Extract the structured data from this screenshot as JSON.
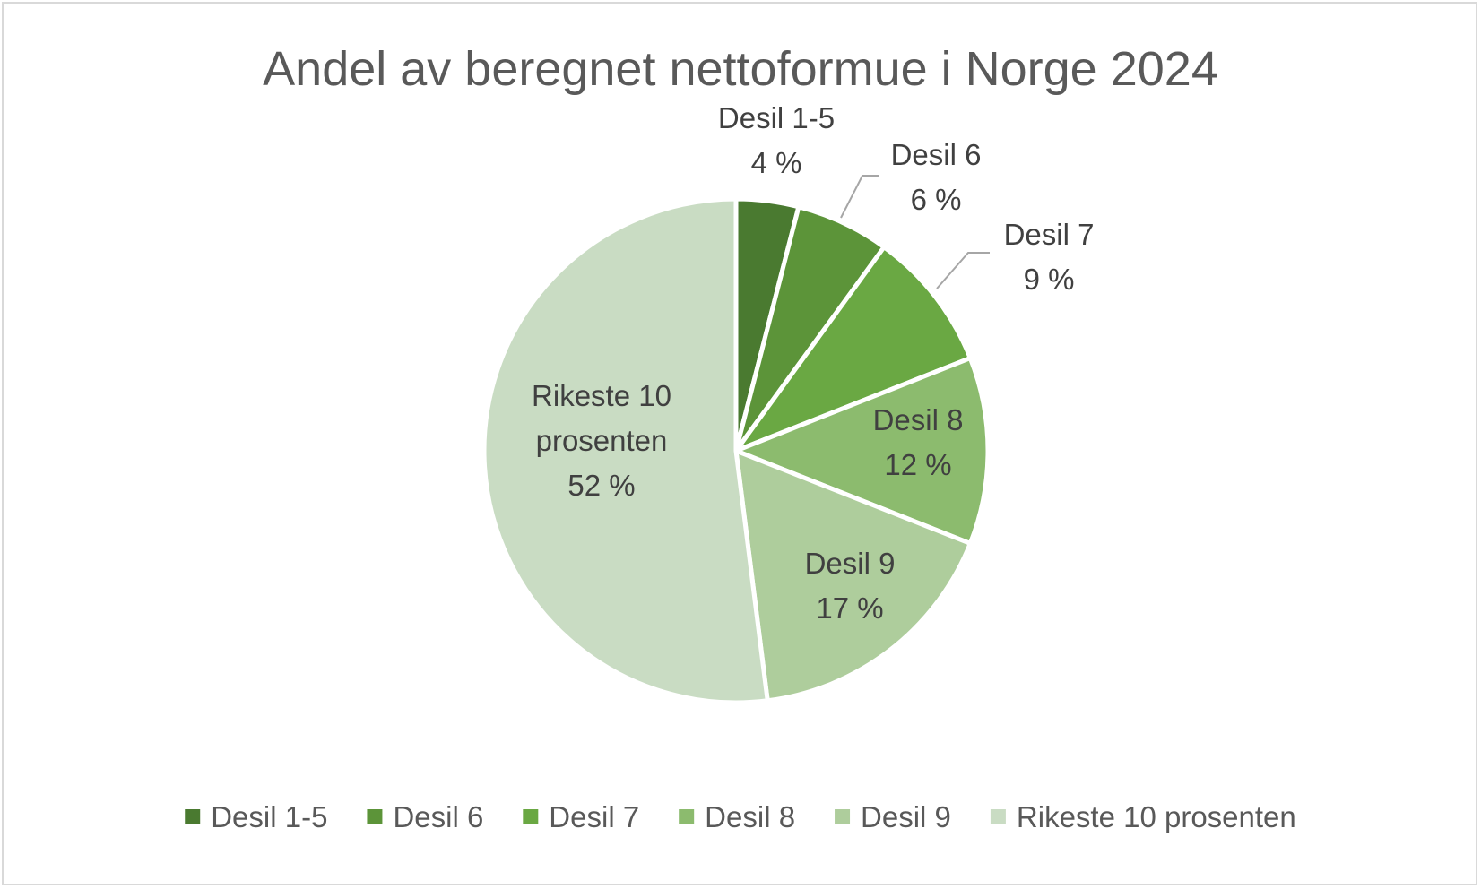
{
  "chart_data": {
    "type": "pie",
    "title": "Andel av beregnet nettoformue i Norge 2024",
    "slices": [
      {
        "label": "Desil 1-5",
        "value": 4,
        "display": "4 %",
        "color": "#4a7a30"
      },
      {
        "label": "Desil 6",
        "value": 6,
        "display": "6 %",
        "color": "#5c9439"
      },
      {
        "label": "Desil 7",
        "value": 9,
        "display": "9 %",
        "color": "#6aa843"
      },
      {
        "label": "Desil 8",
        "value": 12,
        "display": "12 %",
        "color": "#8cbb6e"
      },
      {
        "label": "Desil 9",
        "value": 17,
        "display": "17 %",
        "color": "#aecd9c"
      },
      {
        "label": "Rikeste 10 prosenten",
        "value": 52,
        "display": "52 %",
        "color": "#c9dcc3"
      }
    ],
    "data_labels": [
      {
        "lines": [
          "Desil 1-5",
          "4 %"
        ]
      },
      {
        "lines": [
          "Desil 6",
          "6 %"
        ]
      },
      {
        "lines": [
          "Desil 7",
          "9 %"
        ]
      },
      {
        "lines": [
          "Desil 8",
          "12 %"
        ]
      },
      {
        "lines": [
          "Desil 9",
          "17 %"
        ]
      },
      {
        "lines": [
          "Rikeste 10",
          "prosenten",
          "52 %"
        ]
      }
    ],
    "legend_position": "bottom"
  }
}
